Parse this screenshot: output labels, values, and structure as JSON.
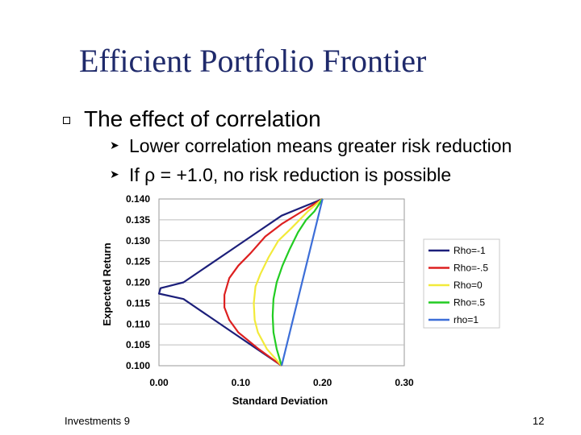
{
  "slide": {
    "title": "Efficient Portfolio Frontier",
    "bullet": "The effect of correlation",
    "sub_bullets": [
      "Lower correlation means greater risk reduction",
      "If ρ = +1.0, no risk reduction is possible"
    ],
    "footer_left": "Investments 9",
    "page_number": "12",
    "title_color": "#1f2a6b"
  },
  "chart_data": {
    "type": "line",
    "title": "",
    "xlabel": "Standard Deviation",
    "ylabel": "Expected Return",
    "xlim": [
      0,
      0.3
    ],
    "ylim": [
      0.1,
      0.14
    ],
    "xticks": [
      "0.00",
      "0.10",
      "0.20",
      "0.30"
    ],
    "yticks": [
      "0.100",
      "0.105",
      "0.110",
      "0.115",
      "0.120",
      "0.125",
      "0.130",
      "0.135",
      "0.140"
    ],
    "legend_position": "right",
    "series": [
      {
        "name": "Rho=-1",
        "color": "#1c1f7a",
        "points": [
          [
            0.15,
            0.1
          ],
          [
            0.12,
            0.104
          ],
          [
            0.09,
            0.108
          ],
          [
            0.06,
            0.112
          ],
          [
            0.03,
            0.116
          ],
          [
            0.0,
            0.1173
          ],
          [
            0.002,
            0.1186
          ],
          [
            0.01,
            0.119
          ],
          [
            0.03,
            0.12
          ],
          [
            0.06,
            0.124
          ],
          [
            0.09,
            0.128
          ],
          [
            0.12,
            0.132
          ],
          [
            0.15,
            0.136
          ],
          [
            0.2,
            0.14
          ]
        ]
      },
      {
        "name": "Rho=-.5",
        "color": "#dd2020",
        "points": [
          [
            0.15,
            0.1
          ],
          [
            0.122,
            0.104
          ],
          [
            0.097,
            0.108
          ],
          [
            0.086,
            0.111
          ],
          [
            0.08,
            0.114
          ],
          [
            0.08,
            0.117
          ],
          [
            0.086,
            0.121
          ],
          [
            0.097,
            0.124
          ],
          [
            0.112,
            0.127
          ],
          [
            0.13,
            0.131
          ],
          [
            0.15,
            0.134
          ],
          [
            0.175,
            0.137
          ],
          [
            0.2,
            0.14
          ]
        ]
      },
      {
        "name": "Rho=0",
        "color": "#f2ea3a",
        "points": [
          [
            0.15,
            0.1
          ],
          [
            0.132,
            0.104
          ],
          [
            0.121,
            0.108
          ],
          [
            0.117,
            0.111
          ],
          [
            0.116,
            0.115
          ],
          [
            0.118,
            0.119
          ],
          [
            0.124,
            0.122
          ],
          [
            0.134,
            0.126
          ],
          [
            0.146,
            0.13
          ],
          [
            0.162,
            0.133
          ],
          [
            0.182,
            0.137
          ],
          [
            0.2,
            0.14
          ]
        ]
      },
      {
        "name": "Rho=.5",
        "color": "#22cc22",
        "points": [
          [
            0.15,
            0.1
          ],
          [
            0.144,
            0.104
          ],
          [
            0.14,
            0.108
          ],
          [
            0.139,
            0.112
          ],
          [
            0.14,
            0.116
          ],
          [
            0.144,
            0.12
          ],
          [
            0.151,
            0.124
          ],
          [
            0.16,
            0.128
          ],
          [
            0.17,
            0.132
          ],
          [
            0.18,
            0.135
          ],
          [
            0.19,
            0.137
          ],
          [
            0.2,
            0.14
          ]
        ]
      },
      {
        "name": "rho=1",
        "color": "#3c6ed8",
        "points": [
          [
            0.15,
            0.1
          ],
          [
            0.2,
            0.14
          ]
        ]
      }
    ]
  }
}
